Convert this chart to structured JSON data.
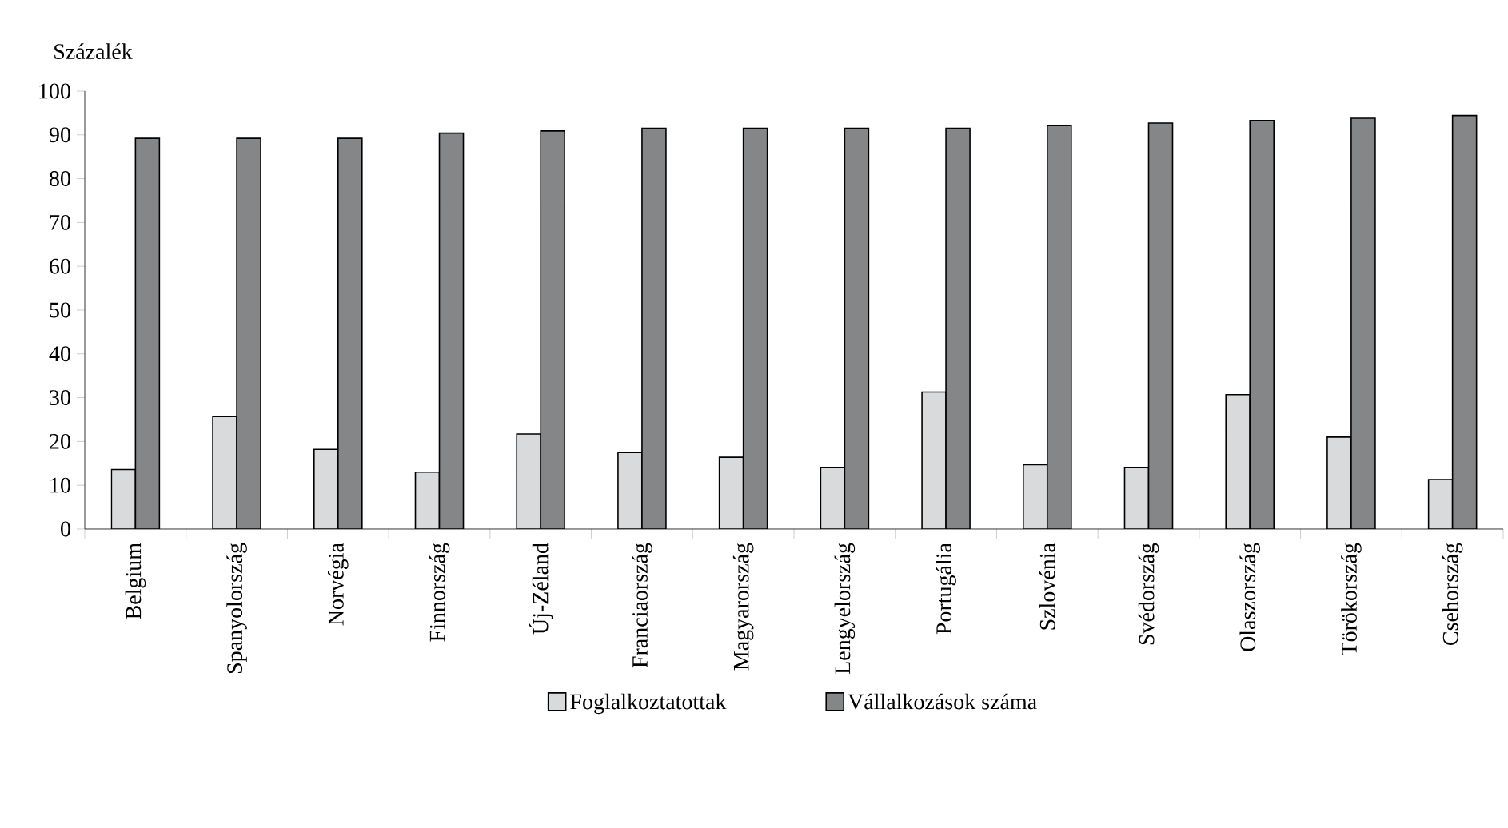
{
  "chart_data": {
    "type": "bar",
    "ylabel": "Százalék",
    "categories": [
      "Belgium",
      "Spanyolország",
      "Norvégia",
      "Finnország",
      "Új-Zéland",
      "Franciaország",
      "Magyarország",
      "Lengyelország",
      "Portugália",
      "Szlovénia",
      "Svédország",
      "Olaszország",
      "Törökország",
      "Csehország"
    ],
    "series": [
      {
        "name": "Foglalkoztatottak",
        "color": "#d9dadc",
        "values": [
          13.6,
          25.7,
          18.2,
          13.0,
          21.7,
          17.5,
          16.4,
          14.1,
          31.3,
          14.7,
          14.1,
          30.7,
          21.0,
          11.3
        ]
      },
      {
        "name": "Vállalkozások száma",
        "color": "#858688",
        "values": [
          89.2,
          89.2,
          89.2,
          90.4,
          90.9,
          91.5,
          91.5,
          91.5,
          91.5,
          92.1,
          92.7,
          93.3,
          93.8,
          94.4
        ]
      }
    ],
    "ylim": [
      0,
      100
    ],
    "yticks": [
      0,
      10,
      20,
      30,
      40,
      50,
      60,
      70,
      80,
      90,
      100
    ],
    "grid": false,
    "legend": "bottom"
  }
}
